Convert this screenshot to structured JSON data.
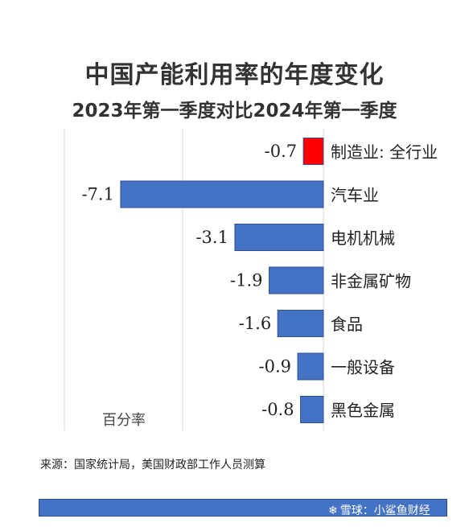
{
  "title": "中国产能利用率的年度变化",
  "subtitle": "2023年第一季度对比2024年第一季度",
  "source": "来源：国家统计局，美国财政部工作人员测算",
  "watermark": {
    "icon": "snowball-logo-icon",
    "text": "雪球：小鲨鱼财经"
  },
  "colors": {
    "positive_highlight": "#ff0000",
    "bar": "#4472c4",
    "bar_border": "#2f4f8f",
    "grid": "#d9d9d9",
    "footer_bar": "#4472c4"
  },
  "chart_data": {
    "type": "bar",
    "orientation": "horizontal",
    "categories": [
      "制造业: 全行业",
      "汽车业",
      "电机机械",
      "非金属矿物",
      "食品",
      "一般设备",
      "黑色金属"
    ],
    "values": [
      -0.7,
      -7.1,
      -3.1,
      -1.9,
      -1.6,
      -0.9,
      -0.8
    ],
    "data_labels": [
      "-0.7",
      "-7.1",
      "-3.1",
      "-1.9",
      "-1.6",
      "-0.9",
      "-0.8"
    ],
    "highlight_index": 0,
    "xlabel": "百分率",
    "ylabel": "",
    "xlim": [
      -8,
      0
    ],
    "grid": true,
    "legend": "none"
  }
}
